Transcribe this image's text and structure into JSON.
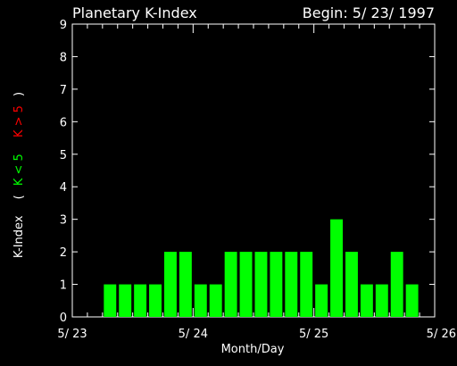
{
  "header": {
    "title": "Planetary K-Index",
    "begin": "Begin: 5/ 23/ 1997"
  },
  "ylabel_parts": {
    "main": "K-Index",
    "open": "(",
    "low": "K < 5",
    "high": "K > 5",
    "close": ")"
  },
  "colors": {
    "background": "#000000",
    "axis": "#ffffff",
    "bar": "#00ff00",
    "low_label": "#00ff00",
    "high_label": "#ff0000"
  },
  "chart_data": {
    "type": "bar",
    "title": "Planetary K-Index",
    "subtitle": "Begin: 5/ 23/ 1997",
    "xlabel": "Month/Day",
    "ylabel": "K-Index ( K < 5 K > 5 )",
    "interval_hours": 3,
    "ylim": [
      0,
      9
    ],
    "yticks": [
      "0",
      "1",
      "2",
      "3",
      "4",
      "5",
      "6",
      "7",
      "8",
      "9"
    ],
    "xticks": [
      "5/ 23",
      "5/ 24",
      "5/ 25",
      "5/ 26"
    ],
    "xlim_days": [
      0,
      3
    ],
    "values": [
      0,
      0,
      1,
      1,
      1,
      1,
      2,
      2,
      1,
      1,
      2,
      2,
      2,
      2,
      2,
      2,
      1,
      3,
      2,
      1,
      1,
      2,
      1,
      0
    ],
    "grid": false,
    "legend": "none"
  }
}
